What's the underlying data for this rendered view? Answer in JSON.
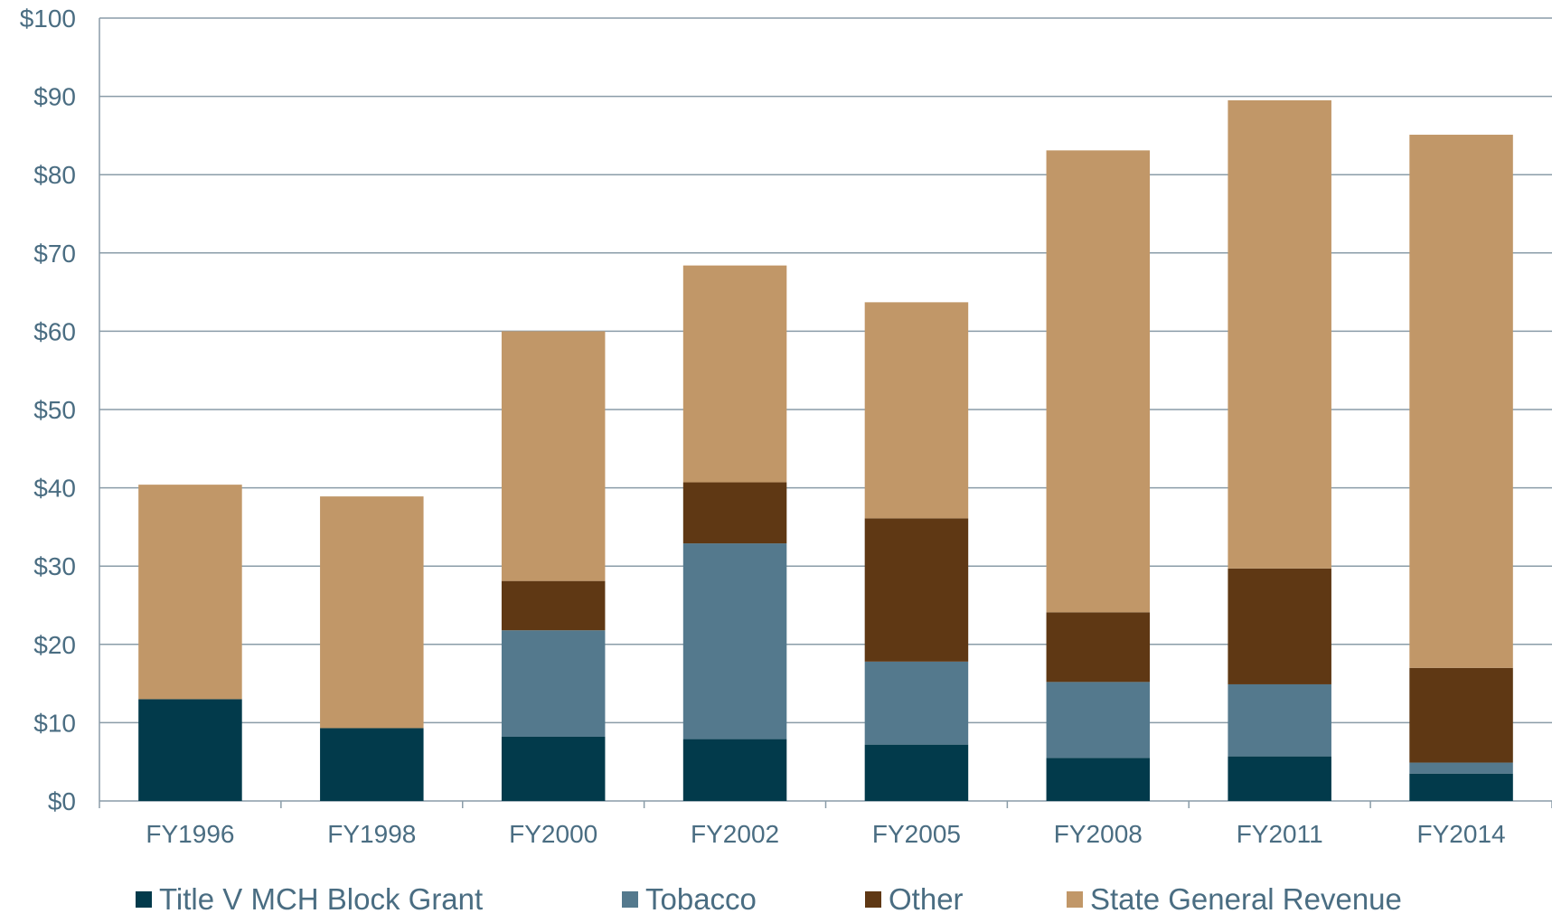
{
  "chart_data": {
    "type": "bar",
    "stacked": true,
    "categories": [
      "FY1996",
      "FY1998",
      "FY2000",
      "FY2002",
      "FY2005",
      "FY2008",
      "FY2011",
      "FY2014"
    ],
    "series": [
      {
        "name": "Title V MCH Block Grant",
        "color": "#023a4b",
        "values": [
          13.0,
          9.3,
          8.2,
          7.9,
          7.2,
          5.5,
          5.7,
          3.5
        ]
      },
      {
        "name": "Tobacco",
        "color": "#54798d",
        "values": [
          0,
          0,
          13.6,
          25.0,
          10.6,
          9.7,
          9.2,
          1.4
        ]
      },
      {
        "name": "Other",
        "color": "#5f3814",
        "values": [
          0,
          0,
          6.3,
          7.8,
          18.3,
          8.9,
          14.8,
          12.1
        ]
      },
      {
        "name": "State General Revenue",
        "color": "#c19768",
        "values": [
          27.4,
          29.6,
          31.9,
          27.7,
          27.6,
          59.0,
          59.8,
          68.1
        ]
      }
    ],
    "ylim": [
      0,
      100
    ],
    "yticks": [
      "$0",
      "$10",
      "$20",
      "$30",
      "$40",
      "$50",
      "$60",
      "$70",
      "$80",
      "$90",
      "$100"
    ],
    "grid": true,
    "legend_position": "bottom",
    "colors": {
      "grid": "#8a9ca8",
      "axis_text": "#4a6d82"
    }
  }
}
